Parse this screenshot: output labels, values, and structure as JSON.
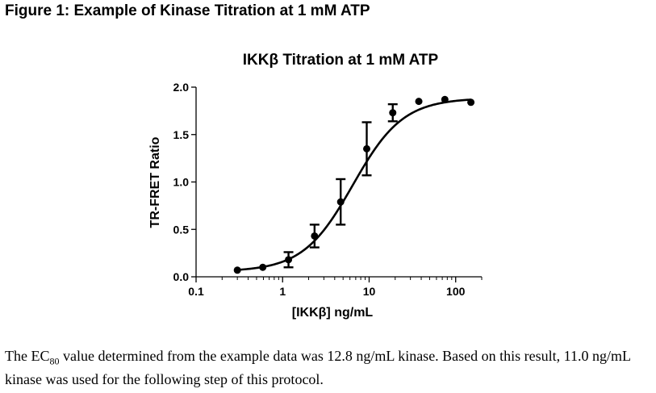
{
  "figure": {
    "heading": "Figure 1: Example of Kinase Titration at 1 mM ATP"
  },
  "caption": {
    "part1": "The EC",
    "sub": "80",
    "part2": " value determined from the example data was 12.8 ng/mL kinase.  Based on this result, 11.0 ng/mL kinase was used for the following step of this protocol."
  },
  "chart_data": {
    "type": "scatter",
    "title": "IKKβ Titration at 1 mM ATP",
    "xlabel": "[IKKβ] ng/mL",
    "ylabel": "TR-FRET Ratio",
    "x_scale": "log",
    "xlim": [
      0.1,
      200
    ],
    "ylim": [
      0,
      2.0
    ],
    "x_ticks": [
      {
        "value": 0.1,
        "label": "0.1"
      },
      {
        "value": 1,
        "label": "1"
      },
      {
        "value": 10,
        "label": "10"
      },
      {
        "value": 100,
        "label": "100"
      }
    ],
    "y_ticks": [
      {
        "value": 0,
        "label": "0.0"
      },
      {
        "value": 0.5,
        "label": "0.5"
      },
      {
        "value": 1.0,
        "label": "1.0"
      },
      {
        "value": 1.5,
        "label": "1.5"
      },
      {
        "value": 2.0,
        "label": "2.0"
      }
    ],
    "points": [
      {
        "x": 0.3,
        "y": 0.07,
        "err": 0
      },
      {
        "x": 0.59,
        "y": 0.1,
        "err": 0
      },
      {
        "x": 1.17,
        "y": 0.18,
        "err": 0.08
      },
      {
        "x": 2.34,
        "y": 0.43,
        "err": 0.12
      },
      {
        "x": 4.69,
        "y": 0.79,
        "err": 0.24
      },
      {
        "x": 9.38,
        "y": 1.35,
        "err": 0.28
      },
      {
        "x": 18.75,
        "y": 1.73,
        "err": 0.09
      },
      {
        "x": 37.5,
        "y": 1.85,
        "err": 0
      },
      {
        "x": 75,
        "y": 1.87,
        "err": 0
      },
      {
        "x": 150,
        "y": 1.84,
        "err": 0
      }
    ],
    "fit": {
      "bottom": 0.055,
      "top": 1.885,
      "ec50": 6.5,
      "hill": 1.5
    },
    "grid": false,
    "colors": {
      "line": "#000000",
      "marker": "#000000"
    }
  }
}
